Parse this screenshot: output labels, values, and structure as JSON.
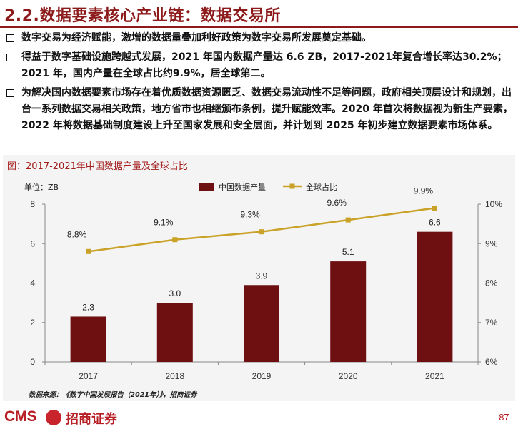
{
  "header": {
    "title": "2.2.数据要素核心产业链：数据交易所"
  },
  "bullets": [
    "数字交易为经济赋能，激增的数据量叠加利好政策为数字交易所发展奠定基础。",
    "得益于数字基础设施跨越式发展，2021 年国内数据产量达 6.6 ZB，2017-2021年复合增长率达30.2%；2021 年，国内产量在全球占比约9.9%，居全球第二。",
    "为解决国内数据要素市场存在着优质数据资源匮乏、数据交易流动性不足等问题，政府相关顶层设计和规划，出台一系列数据交易相关政策，地方省市也相继颁布条例，提升赋能效率。2020 年首次将数据视为新生产要素，2022 年将数据基础制度建设上升至国家发展和安全层面，并计划到 2025 年初步建立数据要素市场体系。"
  ],
  "chart": {
    "caption": "图：2017-2021年中国数据产量及全球占比",
    "unit": "单位：ZB"
  },
  "chart_data": {
    "type": "bar",
    "categories": [
      "2017",
      "2018",
      "2019",
      "2020",
      "2021"
    ],
    "series": [
      {
        "name": "中国数据产量",
        "type": "bar",
        "axis": "left",
        "values": [
          2.3,
          3.0,
          3.9,
          5.1,
          6.6
        ],
        "labels": [
          "2.3",
          "3.0",
          "3.9",
          "5.1",
          "6.6"
        ],
        "color": "#6e0f12"
      },
      {
        "name": "全球占比",
        "type": "line",
        "axis": "right",
        "values": [
          8.8,
          9.1,
          9.3,
          9.6,
          9.9
        ],
        "labels": [
          "8.8%",
          "9.1%",
          "9.3%",
          "9.6%",
          "9.9%"
        ],
        "color": "#c9a227"
      }
    ],
    "y_left": {
      "min": 0,
      "max": 8,
      "ticks": [
        "0",
        "2",
        "4",
        "6",
        "8"
      ]
    },
    "y_right": {
      "min": 6,
      "max": 10,
      "ticks": [
        "6%",
        "7%",
        "8%",
        "9%",
        "10%"
      ]
    },
    "grid": false,
    "legend_position": "top"
  },
  "source": "数据来源：《数字中国发展报告（2021年）》，招商证券",
  "footer": {
    "brand_en": "CMS",
    "brand_cn": "招商证券",
    "page": "-87-"
  }
}
